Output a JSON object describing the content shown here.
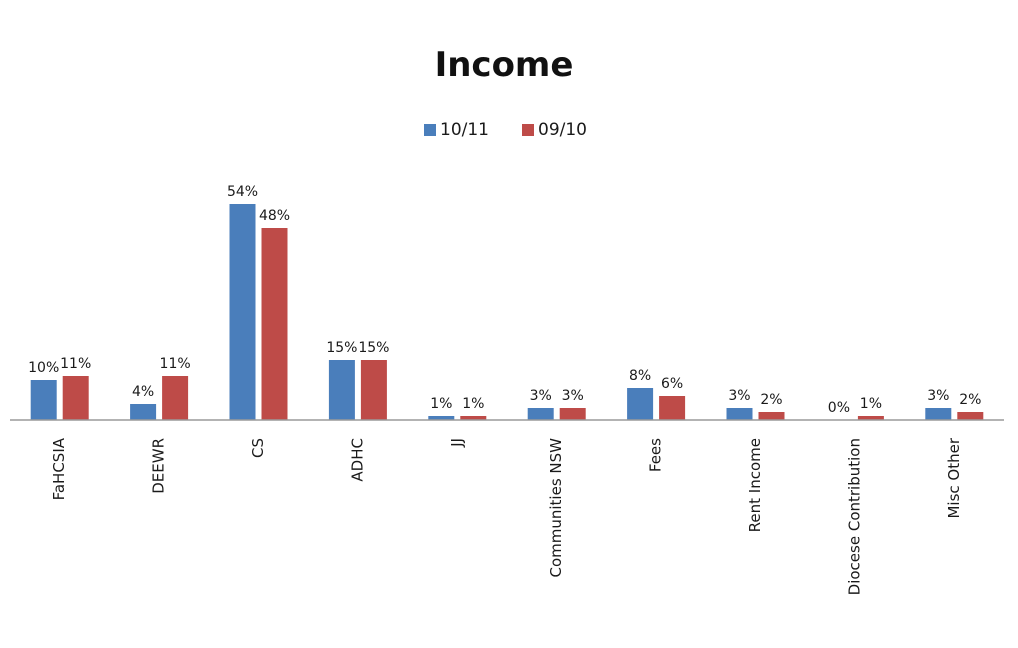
{
  "chart_data": {
    "type": "bar",
    "title": "Income",
    "xlabel": "",
    "ylabel": "",
    "categories": [
      "FaHCSIA",
      "DEEWR",
      "CS",
      "ADHC",
      "JJ",
      "Communities NSW",
      "Fees",
      "Rent Income",
      "Diocese Contribution",
      "Misc Other"
    ],
    "series": [
      {
        "name": "10/11",
        "color": "#4a7ebb",
        "values": [
          10,
          4,
          54,
          15,
          1,
          3,
          8,
          3,
          0,
          3
        ],
        "labels": [
          "10%",
          "4%",
          "54%",
          "15%",
          "1%",
          "3%",
          "8%",
          "3%",
          "0%",
          "3%"
        ]
      },
      {
        "name": "09/10",
        "color": "#be4b48",
        "values": [
          11,
          11,
          48,
          15,
          1,
          3,
          6,
          2,
          1,
          2
        ],
        "labels": [
          "11%",
          "11%",
          "48%",
          "15%",
          "1%",
          "3%",
          "6%",
          "2%",
          "1%",
          "2%"
        ]
      }
    ],
    "ylim": [
      0,
      54
    ],
    "grid": false,
    "legend_position": "top-center"
  }
}
